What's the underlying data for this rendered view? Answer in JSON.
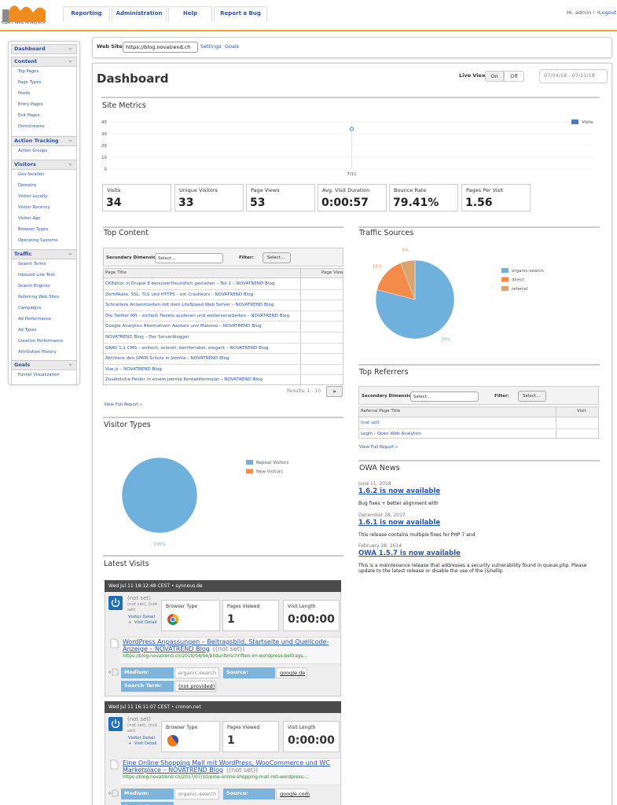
{
  "header": {
    "logo": "Open Web Analytics",
    "nav": [
      "Reporting",
      "Administration",
      "Help",
      "Report a Bug"
    ],
    "greeting": "Hi, admin ! •",
    "logout": "Logout"
  },
  "sidebar": [
    {
      "title": "Dashboard",
      "items": []
    },
    {
      "title": "Content",
      "items": [
        "Top Pages",
        "Page Types",
        "Feeds",
        "Entry Pages",
        "Exit Pages",
        "Domstreams"
      ]
    },
    {
      "title": "Action Tracking",
      "items": [
        "Action Groups"
      ]
    },
    {
      "title": "Visitors",
      "items": [
        "Geo-location",
        "Domains",
        "Visitor Loyalty",
        "Visitor Recency",
        "Visitor Age",
        "Browser Types",
        "Operating Systems"
      ]
    },
    {
      "title": "Traffic",
      "items": [
        "Search Terms",
        "Inbound Link Text",
        "Search Engines",
        "Referring Web Sites",
        "Campaigns",
        "Ad Performance",
        "Ad Types",
        "Creative Performance",
        "Attribution History"
      ]
    },
    {
      "title": "Goals",
      "items": [
        "Funnel Visualization"
      ]
    }
  ],
  "website": {
    "label": "Web Site:",
    "site": "https://blog.novatrend.ch",
    "links": [
      "Settings",
      "Goals"
    ]
  },
  "dashboard": {
    "title": "Dashboard",
    "live_view": "Live View:",
    "on": "On",
    "off": "Off",
    "date_range": "07/04/18 - 07/11/18"
  },
  "chart_data": [
    {
      "type": "line",
      "title": "Site Metrics",
      "categories": [
        "7/11"
      ],
      "series": [
        {
          "name": "Visits",
          "color": "#3d7fc1",
          "values": [
            34
          ]
        }
      ],
      "ylim": [
        0,
        40
      ],
      "yticks": [
        0,
        10,
        20,
        30,
        40
      ],
      "grid": true
    },
    {
      "type": "pie",
      "title": "Traffic Sources",
      "categories": [
        "organic-search",
        "direct",
        "referral"
      ],
      "values": [
        79,
        15,
        6
      ],
      "value_labels": [
        "79%",
        "15%",
        "6%"
      ],
      "colors": [
        "#6fb0dc",
        "#f38b4a",
        "#d9a46d"
      ]
    },
    {
      "type": "pie",
      "title": "Visitor Types",
      "categories": [
        "Repeat Visitors",
        "New Visitors"
      ],
      "values": [
        100,
        0
      ],
      "value_labels": [
        "100%",
        null
      ],
      "colors": [
        "#6fb0dc",
        "#f38b4a"
      ]
    }
  ],
  "metrics": [
    {
      "label": "Visits",
      "value": 34
    },
    {
      "label": "Unique Visitors",
      "value": 33
    },
    {
      "label": "Page Views",
      "value": 53
    },
    {
      "label": "Avg. Visit Duration",
      "value": "0:00:57"
    },
    {
      "label": "Bounce Rate",
      "value": "79.41%"
    },
    {
      "label": "Pages Per Visit",
      "value": 1.56
    }
  ],
  "top_content": {
    "title": "Top Content",
    "secondary_dimension": "Secondary Dimension:",
    "select": "Select...",
    "filter": "Filter:",
    "filter_select": "Select...",
    "columns": [
      "Page Title",
      "Page View"
    ],
    "rows": [
      "CKEditor in Drupal 8 benutzerfreundlich gestalten – Teil 1 – NOVATREND Blog",
      "Zertifikate, SSL, TLS und HTTPS – ein Crashkurs – NOVATREND Blog",
      "Schnellere Antwortzeiten mit dem LiteSpeed Web Server – NOVATREND Blog",
      "Die Twitter API – einfach Tweets auslesen und weiterverarbeiten – NOVATREND Blog",
      "Google Analytics Alternativen Awstats und Matomo – NOVATREND Blog",
      "NOVATREND Blog – Der Serverblogger",
      "GRAV 1.1 CMS – einfach, schnell, komfortabel, elegant – NOVATREND Blog",
      "Aktiviere den SPAM Schutz in Joomla – NOVATREND Blog",
      "Vue.js – NOVATREND Blog",
      "Zusätzliche Felder in einem Joomla Kontaktformular – NOVATREND Blog"
    ],
    "results": "Results: 1 - 10",
    "next": "»",
    "view_full": "View Full Report »"
  },
  "top_referrers": {
    "title": "Top Referrers",
    "secondary_dimension": "Secondary Dimension:",
    "select": "Select...",
    "filter": "Filter:",
    "filter_select": "Select...",
    "columns": [
      "Referral Page Title",
      "Visit"
    ],
    "rows": [
      "(not set)",
      "Login - Open Web Analytics"
    ],
    "view_full": "View Full Report »"
  },
  "owa_news": {
    "title": "OWA News",
    "items": [
      {
        "date": "June 11, 2018",
        "title": "1.6.2 is now available",
        "text": "Bug fixes + better alignment with"
      },
      {
        "date": "December 28, 2017",
        "title": "1.6.1 is now available",
        "text": "This release contains multiple fixes for PHP 7 and"
      },
      {
        "date": "February 28, 2014",
        "title": "OWA 1.5.7 is now available",
        "text": "This is a maintenance release that addresses a security vulnerability found in queue.php. Please update to the latest release or disable the use of the [&hellip"
      }
    ]
  },
  "latest_visits": {
    "title": "Latest Visits",
    "labels": {
      "browser_type": "Browser Type",
      "pages_viewed": "Pages Viewed",
      "visit_length": "Visit Length",
      "visitor_detail": "Visitor Detail",
      "plus": "+",
      "visit_detail": "Visit Detail",
      "medium": "Medium:",
      "source": "Source:",
      "search_term": "Search Term:"
    },
    "visits": [
      {
        "header": "Wed Jul 11 18:12:48 CEST • synnous.de",
        "visitor": "(not set)",
        "location": "(not set), (not set)",
        "pages_viewed": 1,
        "visit_length": "0:00:00",
        "page_title": "WordPress Anpassungen – Beitragsbild, Startseite und Quellcode-Anzeige – NOVATREND Blog",
        "page_note": "((not set))",
        "url": "https://blog.novatrend.ch/2018/04/04/bildunterschriften-im-wordpress-beitrags...",
        "medium": "organic-search",
        "source": "google.de",
        "search_term": "(not provided)"
      },
      {
        "header": "Wed Jul 11 16:11:07 CEST • cronon.net",
        "visitor": "(not set)",
        "location": "(not set), (not set)",
        "pages_viewed": 1,
        "visit_length": "0:00:00",
        "page_title": "Eine Online Shopping Mall mit WordPress, WooCommerce und WC Marketplace – NOVATREND Blog",
        "page_note": "((not set))",
        "url": "https://blog.novatrend.ch/2017/07/10/eine-online-shopping-mall-mit-wordpress-...",
        "medium": "organic-search",
        "source": "google.com"
      }
    ]
  }
}
